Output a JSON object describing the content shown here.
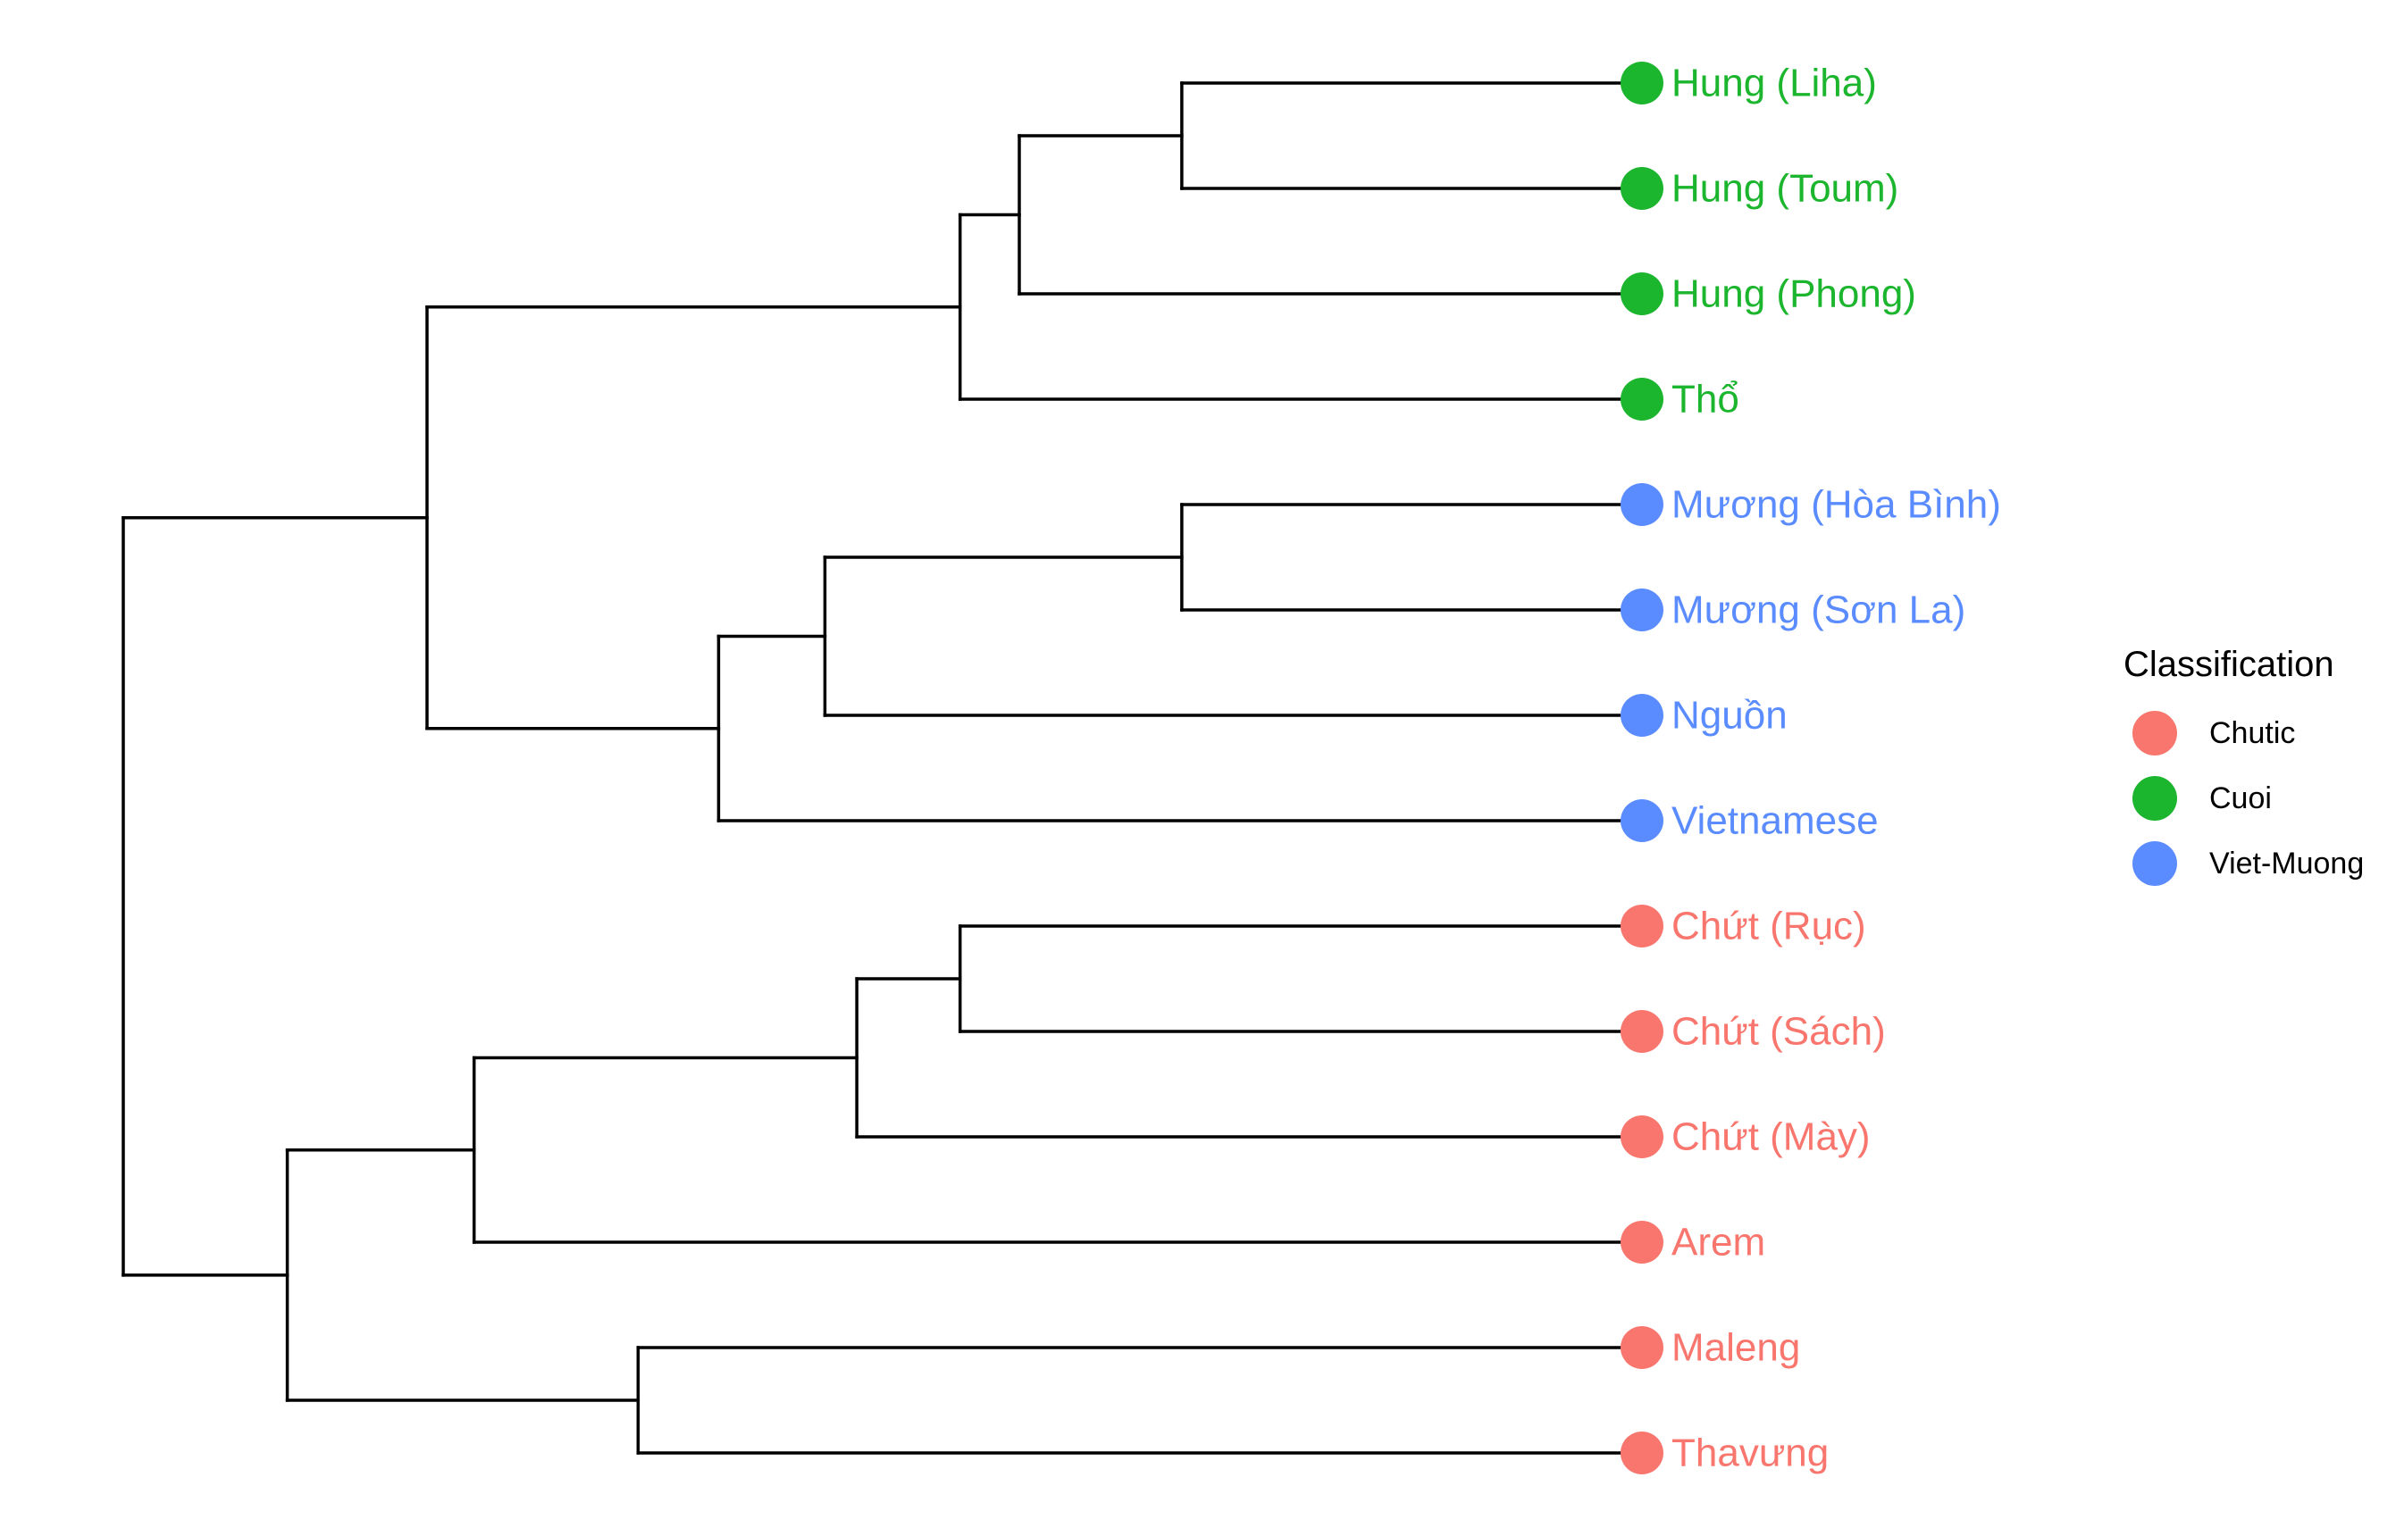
{
  "colors": {
    "Chutic": "#F8766D",
    "Cuoi": "#1CB52E",
    "Viet-Muong": "#5A8CFF"
  },
  "tips": [
    {
      "label": "Hung (Liha)",
      "group": "Cuoi"
    },
    {
      "label": "Hung (Toum)",
      "group": "Cuoi"
    },
    {
      "label": "Hung (Phong)",
      "group": "Cuoi"
    },
    {
      "label": "Thổ",
      "group": "Cuoi"
    },
    {
      "label": "Mương (Hòa Bình)",
      "group": "Viet-Muong"
    },
    {
      "label": "Mương (Sơn La)",
      "group": "Viet-Muong"
    },
    {
      "label": "Nguồn",
      "group": "Viet-Muong"
    },
    {
      "label": "Vietnamese",
      "group": "Viet-Muong"
    },
    {
      "label": "Chứt (Rục)",
      "group": "Chutic"
    },
    {
      "label": "Chứt (Sách)",
      "group": "Chutic"
    },
    {
      "label": "Chứt (Mày)",
      "group": "Chutic"
    },
    {
      "label": "Arem",
      "group": "Chutic"
    },
    {
      "label": "Maleng",
      "group": "Chutic"
    },
    {
      "label": "Thavưng",
      "group": "Chutic"
    }
  ],
  "tree": {
    "depth": 0.0,
    "children": [
      {
        "depth": 0.2,
        "children": [
          {
            "depth": 0.551,
            "children": [
              {
                "depth": 0.59,
                "children": [
                  {
                    "depth": 0.697,
                    "children": [
                      {
                        "tip": 0
                      },
                      {
                        "tip": 1
                      }
                    ]
                  },
                  {
                    "tip": 2
                  }
                ]
              },
              {
                "tip": 3
              }
            ]
          },
          {
            "depth": 0.392,
            "children": [
              {
                "depth": 0.462,
                "children": [
                  {
                    "depth": 0.697,
                    "children": [
                      {
                        "tip": 4
                      },
                      {
                        "tip": 5
                      }
                    ]
                  },
                  {
                    "tip": 6
                  }
                ]
              },
              {
                "tip": 7
              }
            ]
          }
        ]
      },
      {
        "depth": 0.108,
        "children": [
          {
            "depth": 0.231,
            "children": [
              {
                "depth": 0.483,
                "children": [
                  {
                    "depth": 0.551,
                    "children": [
                      {
                        "tip": 8
                      },
                      {
                        "tip": 9
                      }
                    ]
                  },
                  {
                    "tip": 10
                  }
                ]
              },
              {
                "tip": 11
              }
            ]
          },
          {
            "depth": 0.339,
            "children": [
              {
                "tip": 12
              },
              {
                "tip": 13
              }
            ]
          }
        ]
      }
    ]
  },
  "legend": {
    "title": "Classification",
    "items": [
      {
        "label": "Chutic",
        "group": "Chutic"
      },
      {
        "label": "Cuoi",
        "group": "Cuoi"
      },
      {
        "label": "Viet-Muong",
        "group": "Viet-Muong"
      }
    ]
  }
}
